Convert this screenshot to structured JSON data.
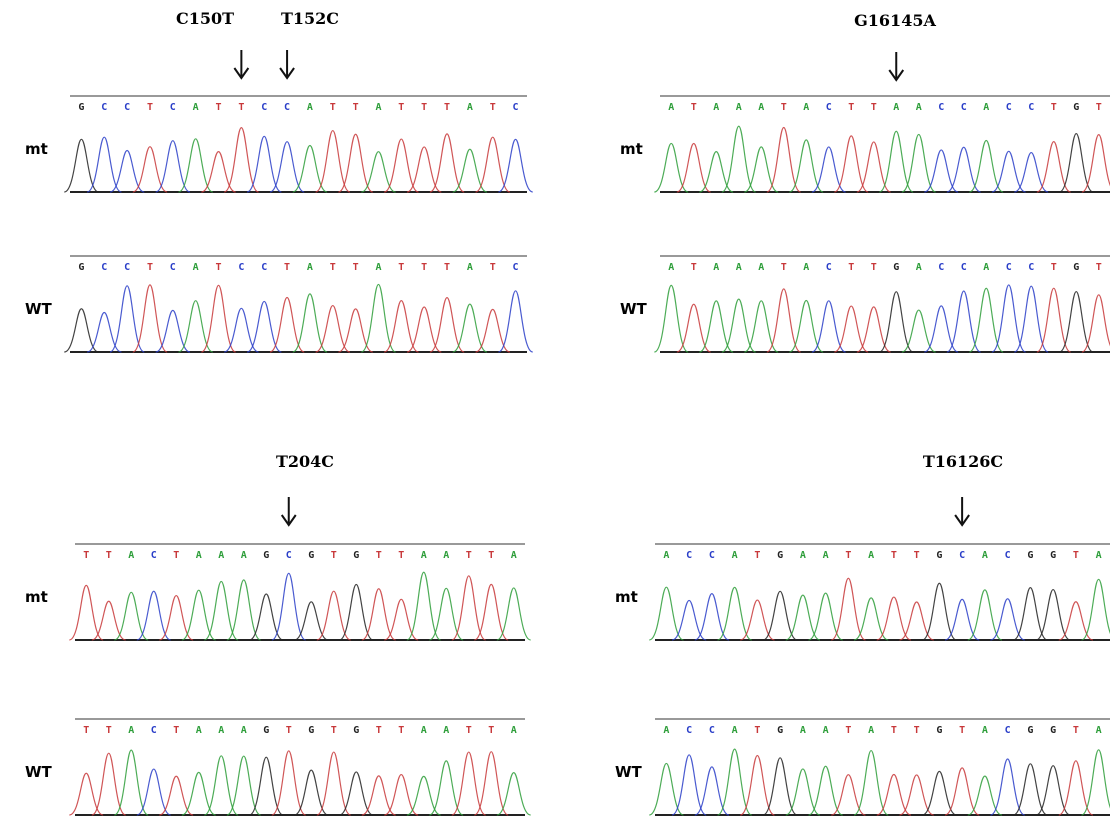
{
  "panels": [
    {
      "mutations": [
        "C150T",
        "T152C"
      ],
      "tracks": [
        {
          "label": "mt",
          "bases": [
            "G",
            "C",
            "C",
            "T",
            "C",
            "A",
            "T",
            "T",
            "C",
            "C",
            "A",
            "T",
            "T",
            "A",
            "T",
            "T",
            "T",
            "A",
            "T",
            "C"
          ]
        },
        {
          "label": "WT",
          "bases": [
            "G",
            "C",
            "C",
            "T",
            "C",
            "A",
            "T",
            "C",
            "C",
            "T",
            "A",
            "T",
            "T",
            "A",
            "T",
            "T",
            "T",
            "A",
            "T",
            "C"
          ]
        }
      ]
    },
    {
      "mutations": [
        "G16145A"
      ],
      "tracks": [
        {
          "label": "mt",
          "bases": [
            "A",
            "T",
            "A",
            "A",
            "A",
            "T",
            "A",
            "C",
            "T",
            "T",
            "A",
            "A",
            "C",
            "C",
            "A",
            "C",
            "C",
            "T",
            "G",
            "T"
          ]
        },
        {
          "label": "WT",
          "bases": [
            "A",
            "T",
            "A",
            "A",
            "A",
            "T",
            "A",
            "C",
            "T",
            "T",
            "G",
            "A",
            "C",
            "C",
            "A",
            "C",
            "C",
            "T",
            "G",
            "T"
          ]
        }
      ]
    },
    {
      "mutations": [
        "T204C"
      ],
      "tracks": [
        {
          "label": "mt",
          "bases": [
            "T",
            "T",
            "A",
            "C",
            "T",
            "A",
            "A",
            "A",
            "G",
            "C",
            "G",
            "T",
            "G",
            "T",
            "T",
            "A",
            "A",
            "T",
            "T",
            "A"
          ]
        },
        {
          "label": "WT",
          "bases": [
            "T",
            "T",
            "A",
            "C",
            "T",
            "A",
            "A",
            "A",
            "G",
            "T",
            "G",
            "T",
            "G",
            "T",
            "T",
            "A",
            "A",
            "T",
            "T",
            "A"
          ]
        }
      ]
    },
    {
      "mutations": [
        "T16126C"
      ],
      "tracks": [
        {
          "label": "mt",
          "bases": [
            "A",
            "C",
            "C",
            "A",
            "T",
            "G",
            "A",
            "A",
            "T",
            "A",
            "T",
            "T",
            "G",
            "C",
            "A",
            "C",
            "G",
            "G",
            "T",
            "A"
          ]
        },
        {
          "label": "WT",
          "bases": [
            "A",
            "C",
            "C",
            "A",
            "T",
            "G",
            "A",
            "A",
            "T",
            "A",
            "T",
            "T",
            "G",
            "T",
            "A",
            "C",
            "G",
            "G",
            "T",
            "A"
          ]
        }
      ]
    }
  ]
}
